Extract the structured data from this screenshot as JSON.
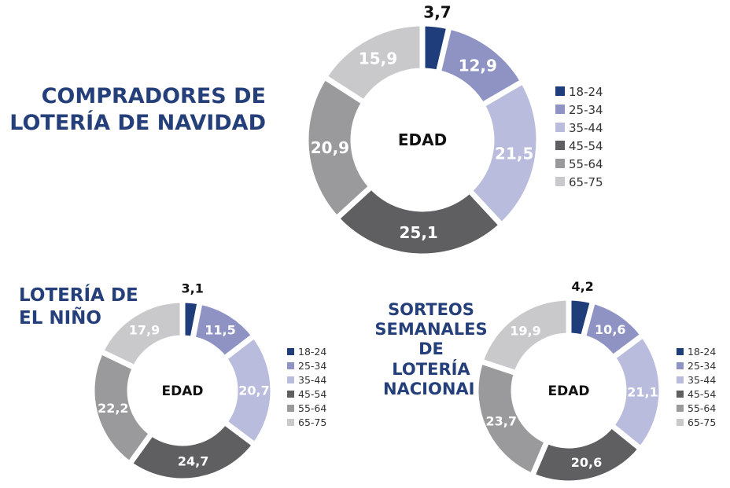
{
  "colors": {
    "18-24": "#1f3d7a",
    "25-34": "#8e93c4",
    "35-44": "#b9bcdc",
    "45-54": "#5f5f61",
    "55-64": "#9a9a9c",
    "65-75": "#c9c9cb",
    "title": "#243f7a"
  },
  "chart_data": [
    {
      "type": "pie",
      "title": "COMPRADORES DE LOTERÍA DE NAVIDAD",
      "center_label": "EDAD",
      "categories": [
        "18-24",
        "25-34",
        "35-44",
        "45-54",
        "55-64",
        "65-75"
      ],
      "values": [
        3.7,
        12.9,
        21.5,
        25.1,
        20.9,
        15.9
      ],
      "labels": [
        "3,7",
        "12,9",
        "21,5",
        "25,1",
        "20,9",
        "15,9"
      ],
      "legend": "right"
    },
    {
      "type": "pie",
      "title": "LOTERÍA DE EL NIÑO",
      "center_label": "EDAD",
      "categories": [
        "18-24",
        "25-34",
        "35-44",
        "45-54",
        "55-64",
        "65-75"
      ],
      "values": [
        3.1,
        11.5,
        20.7,
        24.7,
        22.2,
        17.9
      ],
      "labels": [
        "3,1",
        "11,5",
        "20,7",
        "24,7",
        "22,2",
        "17,9"
      ],
      "legend": "right"
    },
    {
      "type": "pie",
      "title": "SORTEOS SEMANALES DE LOTERÍA NACIONAL",
      "center_label": "EDAD",
      "categories": [
        "18-24",
        "25-34",
        "35-44",
        "45-54",
        "55-64",
        "65-75"
      ],
      "values": [
        4.2,
        10.6,
        21.1,
        20.6,
        23.7,
        19.9
      ],
      "labels": [
        "4,2",
        "10,6",
        "21,1",
        "20,6",
        "23,7",
        "19,9"
      ],
      "legend": "right"
    }
  ],
  "titles": {
    "t1": [
      "COMPRADORES DE",
      "LOTERÍA DE NAVIDAD"
    ],
    "t2": [
      "LOTERÍA DE",
      "EL NIÑO"
    ],
    "t3": [
      "SORTEOS",
      "SEMANALES",
      "DE",
      "LOTERÍA",
      "NACIONAL"
    ]
  }
}
